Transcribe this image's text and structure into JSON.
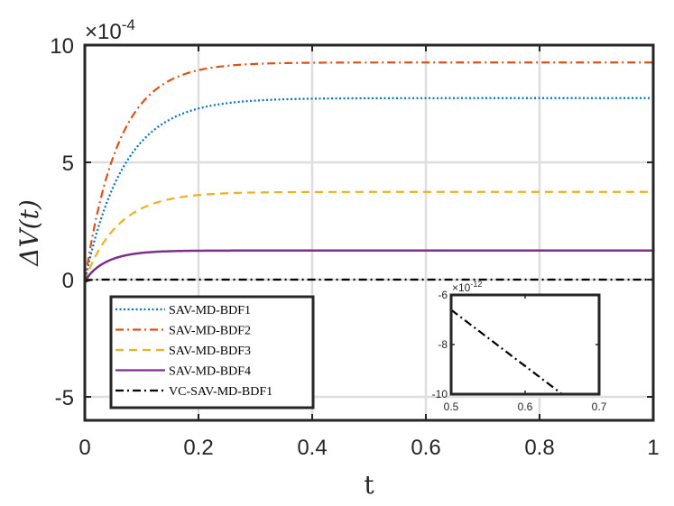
{
  "chart_data": [
    {
      "type": "line",
      "title": "",
      "xlabel": "t",
      "ylabel": "ΔV(t)",
      "xlim": [
        0,
        1
      ],
      "ylim": [
        -0.0006,
        0.001
      ],
      "xticks": [
        0,
        0.2,
        0.4,
        0.6,
        0.8,
        1
      ],
      "xtick_labels": [
        "0",
        "0.2",
        "0.4",
        "0.6",
        "0.8",
        "1"
      ],
      "yticks": [
        -0.0005,
        0,
        0.0005,
        0.001
      ],
      "ytick_labels": [
        "-5",
        "0",
        "5",
        "10"
      ],
      "y_multiplier": "×10",
      "y_exponent": "-4",
      "grid": true,
      "legend_position": "bottom-left",
      "series": [
        {
          "name": "SAV-MD-BDF1",
          "color": "#0072BD",
          "style": "dotted",
          "plateau": 0.000774,
          "tau": 0.07
        },
        {
          "name": "SAV-MD-BDF2",
          "color": "#D95319",
          "style": "dashdot",
          "plateau": 0.000926,
          "tau": 0.06
        },
        {
          "name": "SAV-MD-BDF3",
          "color": "#EDB120",
          "style": "dashed",
          "plateau": 0.000374,
          "tau": 0.06
        },
        {
          "name": "SAV-MD-BDF4",
          "color": "#7E2F8E",
          "style": "solid",
          "plateau": 0.000124,
          "tau": 0.04
        },
        {
          "name": "VC-SAV-MD-BDF1",
          "color": "#000000",
          "style": "dashdot",
          "plateau": 0,
          "tau": 0.05
        }
      ]
    },
    {
      "type": "line",
      "title": "inset",
      "xlim": [
        0.5,
        0.7
      ],
      "ylim": [
        -1e-11,
        -6e-12
      ],
      "xticks": [
        0.5,
        0.6,
        0.7
      ],
      "xtick_labels": [
        "0.5",
        "0.6",
        "0.7"
      ],
      "yticks": [
        -1e-11,
        -8e-12,
        -6e-12
      ],
      "ytick_labels": [
        "-10",
        "-8",
        "-6"
      ],
      "y_multiplier": "×10",
      "y_exponent": "-12",
      "series": [
        {
          "name": "VC-SAV-MD-BDF1",
          "color": "#000000",
          "style": "dashdot",
          "x": [
            0.5,
            0.65
          ],
          "y": [
            -6.6e-12,
            -1e-11
          ]
        }
      ]
    }
  ]
}
